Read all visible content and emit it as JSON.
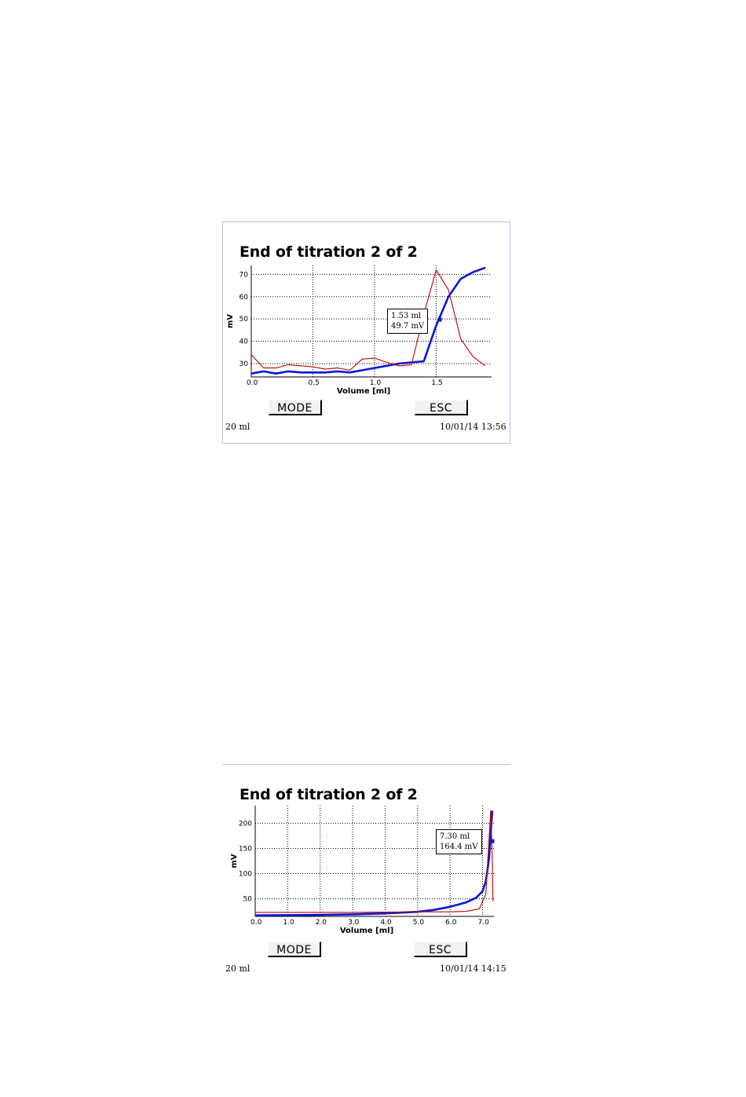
{
  "screens": [
    {
      "title": "End of titration 2 of 2",
      "callout": {
        "volume": "1.53 ml",
        "potential": "49.7 mV"
      },
      "buttons": {
        "mode": "MODE",
        "esc": "ESC"
      },
      "status": {
        "burette": "20 ml",
        "datetime": "10/01/14 13:56"
      },
      "colors": {
        "titration_curve": "#0a18d6",
        "derivative_curve": "#c00000"
      }
    },
    {
      "title": "End of titration 2 of 2",
      "callout": {
        "volume": "7.30 ml",
        "potential": "164.4 mV"
      },
      "buttons": {
        "mode": "MODE",
        "esc": "ESC"
      },
      "status": {
        "burette": "20 ml",
        "datetime": "10/01/14 14:15"
      },
      "colors": {
        "titration_curve": "#0a18d6",
        "derivative_curve": "#c00000"
      }
    }
  ],
  "chart_data": [
    {
      "type": "line",
      "title": "End of titration 2 of 2",
      "xlabel": "Volume [ml]",
      "ylabel": "mV",
      "xlim": [
        0,
        1.95
      ],
      "ylim": [
        24,
        74
      ],
      "xticks": [
        0.0,
        0.5,
        1.0,
        1.5
      ],
      "xtick_labels": [
        "0.0",
        "0.5",
        "1.0",
        "1.5"
      ],
      "yticks": [
        30,
        40,
        50,
        60,
        70
      ],
      "grid": true,
      "marker": {
        "x": 1.53,
        "y": 49.7
      },
      "series": [
        {
          "role": "titration",
          "color": "#0a18d6",
          "x": [
            0.0,
            0.1,
            0.2,
            0.3,
            0.4,
            0.5,
            0.6,
            0.7,
            0.8,
            0.9,
            1.0,
            1.1,
            1.2,
            1.3,
            1.4,
            1.5,
            1.6,
            1.7,
            1.8,
            1.9
          ],
          "y": [
            25.5,
            26.5,
            25.5,
            26.5,
            26.0,
            26.0,
            26.0,
            26.5,
            26.0,
            27.0,
            28.0,
            29.0,
            30.0,
            30.5,
            31.0,
            47.0,
            60.0,
            68.0,
            71.0,
            73.0
          ]
        },
        {
          "role": "derivative",
          "color": "#c00000",
          "x": [
            0.0,
            0.1,
            0.2,
            0.3,
            0.4,
            0.5,
            0.6,
            0.7,
            0.8,
            0.9,
            1.0,
            1.1,
            1.2,
            1.3,
            1.4,
            1.5,
            1.6,
            1.7,
            1.8,
            1.9
          ],
          "y": [
            34.0,
            28.0,
            28.0,
            29.5,
            29.0,
            28.5,
            27.5,
            28.0,
            27.0,
            32.0,
            32.5,
            30.5,
            29.0,
            29.5,
            52.0,
            72.0,
            63.0,
            41.0,
            33.0,
            29.0
          ]
        }
      ]
    },
    {
      "type": "line",
      "title": "End of titration 2 of 2",
      "xlabel": "Volume [ml]",
      "ylabel": "mV",
      "xlim": [
        0,
        7.35
      ],
      "ylim": [
        15,
        235
      ],
      "xticks": [
        0,
        1,
        2,
        3,
        4,
        5,
        6,
        7
      ],
      "xtick_labels": [
        "0.0",
        "1.0",
        "2.0",
        "3.0",
        "4.0",
        "5.0",
        "6.0",
        "7.0"
      ],
      "yticks": [
        50,
        100,
        150,
        200
      ],
      "grid": true,
      "marker": {
        "x": 7.3,
        "y": 164.4
      },
      "series": [
        {
          "role": "titration",
          "color": "#0a18d6",
          "x": [
            0,
            1,
            2,
            3,
            4,
            5,
            5.5,
            6,
            6.5,
            6.8,
            7.0,
            7.1,
            7.2,
            7.25,
            7.3
          ],
          "y": [
            17,
            17.5,
            18,
            19,
            21,
            24,
            28,
            34,
            43,
            52,
            65,
            85,
            130,
            180,
            225
          ]
        },
        {
          "role": "derivative",
          "color": "#c00000",
          "x": [
            0,
            1,
            2,
            3,
            4,
            5,
            6,
            6.5,
            6.9,
            7.1,
            7.2,
            7.25,
            7.3,
            7.32
          ],
          "y": [
            23,
            23,
            23,
            23,
            23.5,
            24,
            24,
            25,
            30,
            60,
            170,
            225,
            130,
            45
          ]
        }
      ]
    }
  ]
}
